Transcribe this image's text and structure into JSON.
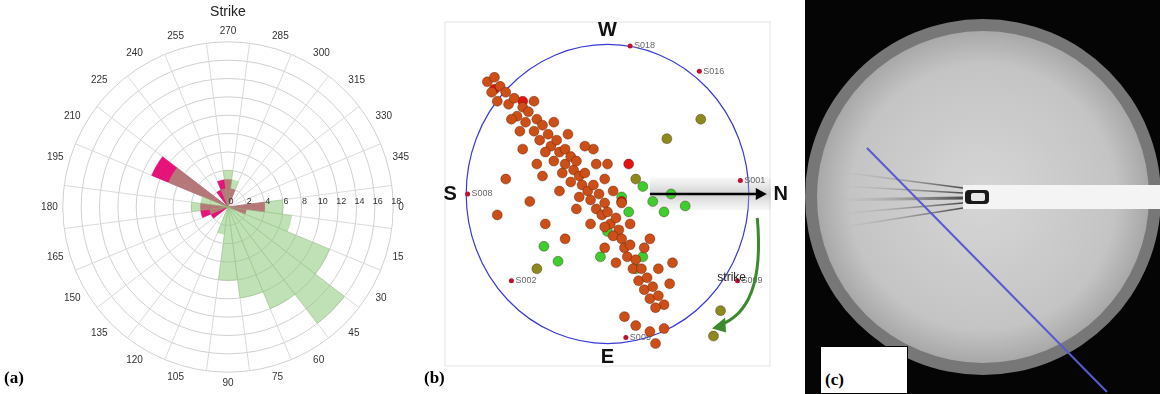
{
  "chart_data": [
    {
      "panel_label": "(a)",
      "type": "rose",
      "title": "Strike",
      "categories": [
        0,
        15,
        30,
        45,
        60,
        75,
        90,
        105,
        120,
        135,
        150,
        165,
        180,
        195,
        210,
        225,
        240,
        255,
        270,
        285,
        300,
        315,
        330,
        345
      ],
      "series": [
        {
          "color": "rgba(140,200,120,0.55)",
          "values": [
            6,
            7,
            12,
            16,
            12,
            10,
            8,
            3,
            0,
            0,
            0,
            2,
            4,
            3,
            7,
            0,
            0,
            2,
            4,
            3,
            0,
            0,
            0,
            0
          ]
        },
        {
          "color": "rgba(228,0,110,0.92)",
          "values": [
            4,
            2,
            0,
            0,
            0,
            0,
            0,
            0,
            0,
            0,
            2,
            3,
            3,
            0,
            9,
            0,
            2,
            3,
            3,
            2,
            0,
            0,
            0,
            0
          ]
        }
      ],
      "ylim": [
        0,
        18
      ],
      "yticks": [
        0,
        2,
        4,
        6,
        8,
        10,
        12,
        14,
        16,
        18
      ],
      "grid": true
    },
    {
      "panel_label": "(b)",
      "type": "scatter",
      "tick_labels": false,
      "xlim": [
        -1.15,
        1.15
      ],
      "ylim": [
        -1.15,
        1.15
      ],
      "series": [
        {
          "color": "#cc4f18",
          "values": [
            [
              -0.85,
              0.75
            ],
            [
              -0.8,
              0.78
            ],
            [
              -0.76,
              0.72
            ],
            [
              -0.82,
              0.68
            ],
            [
              -0.72,
              0.68
            ],
            [
              -0.78,
              0.62
            ],
            [
              -0.7,
              0.6
            ],
            [
              -0.66,
              0.64
            ],
            [
              -0.6,
              0.58
            ],
            [
              -0.64,
              0.52
            ],
            [
              -0.56,
              0.55
            ],
            [
              -0.58,
              0.48
            ],
            [
              -0.5,
              0.5
            ],
            [
              -0.52,
              0.42
            ],
            [
              -0.46,
              0.46
            ],
            [
              -0.48,
              0.36
            ],
            [
              -0.42,
              0.4
            ],
            [
              -0.4,
              0.32
            ],
            [
              -0.44,
              0.28
            ],
            [
              -0.36,
              0.36
            ],
            [
              -0.34,
              0.28
            ],
            [
              -0.38,
              0.22
            ],
            [
              -0.3,
              0.3
            ],
            [
              -0.3,
              0.2
            ],
            [
              -0.26,
              0.25
            ],
            [
              -0.32,
              0.14
            ],
            [
              -0.24,
              0.16
            ],
            [
              -0.22,
              0.22
            ],
            [
              -0.2,
              0.12
            ],
            [
              -0.26,
              0.08
            ],
            [
              -0.16,
              0.14
            ],
            [
              -0.18,
              0.06
            ],
            [
              -0.14,
              0.02
            ],
            [
              -0.2,
              -0.02
            ],
            [
              -0.1,
              0.06
            ],
            [
              -0.12,
              -0.04
            ],
            [
              -0.06,
              0.0
            ],
            [
              -0.08,
              -0.1
            ],
            [
              -0.02,
              -0.06
            ],
            [
              -0.04,
              -0.14
            ],
            [
              0.0,
              -0.12
            ],
            [
              0.02,
              -0.2
            ],
            [
              0.06,
              -0.16
            ],
            [
              -0.02,
              -0.22
            ],
            [
              0.08,
              -0.24
            ],
            [
              0.04,
              -0.28
            ],
            [
              0.1,
              -0.3
            ],
            [
              0.12,
              -0.36
            ],
            [
              0.16,
              -0.34
            ],
            [
              0.14,
              -0.42
            ],
            [
              0.2,
              -0.44
            ],
            [
              0.18,
              -0.5
            ],
            [
              0.24,
              -0.5
            ],
            [
              0.22,
              -0.58
            ],
            [
              0.28,
              -0.56
            ],
            [
              0.26,
              -0.64
            ],
            [
              0.32,
              -0.62
            ],
            [
              0.3,
              -0.7
            ],
            [
              0.36,
              -0.68
            ],
            [
              0.4,
              -0.74
            ],
            [
              0.34,
              -0.76
            ],
            [
              0.12,
              -0.82
            ],
            [
              0.2,
              -0.88
            ],
            [
              0.3,
              -0.92
            ],
            [
              0.34,
              -1.0
            ],
            [
              0.4,
              -0.9
            ],
            [
              -0.72,
              0.1
            ],
            [
              -0.78,
              -0.14
            ],
            [
              -0.55,
              -0.05
            ],
            [
              -0.5,
              0.2
            ],
            [
              -0.1,
              0.3
            ],
            [
              0.0,
              0.2
            ],
            [
              -0.44,
              -0.2
            ],
            [
              -0.3,
              -0.3
            ],
            [
              0.06,
              -0.46
            ],
            [
              0.3,
              -0.3
            ],
            [
              0.46,
              -0.46
            ],
            [
              -0.6,
              0.3
            ],
            [
              -0.52,
              0.62
            ],
            [
              -0.38,
              0.48
            ],
            [
              -0.28,
              0.4
            ],
            [
              -0.16,
              0.32
            ],
            [
              -0.08,
              0.2
            ],
            [
              -0.02,
              0.1
            ],
            [
              0.04,
              0.02
            ],
            [
              0.1,
              -0.06
            ],
            [
              0.16,
              -0.2
            ],
            [
              0.26,
              -0.36
            ],
            [
              0.36,
              -0.5
            ],
            [
              0.44,
              -0.6
            ],
            [
              -0.02,
              -0.36
            ],
            [
              -0.12,
              -0.2
            ],
            [
              -0.22,
              -0.1
            ],
            [
              -0.34,
              0.02
            ],
            [
              -0.46,
              0.12
            ],
            [
              -0.62,
              0.42
            ],
            [
              -0.68,
              0.5
            ]
          ]
        },
        {
          "color": "#e41212",
          "values": [
            [
              -0.8,
              0.7
            ],
            [
              0.15,
              0.2
            ],
            [
              0.1,
              -0.05
            ],
            [
              -0.6,
              0.62
            ]
          ]
        },
        {
          "color": "#8c8a1e",
          "values": [
            [
              0.42,
              0.37
            ],
            [
              0.66,
              0.5
            ],
            [
              0.2,
              0.1
            ],
            [
              -0.5,
              -0.5
            ],
            [
              0.75,
              -0.95
            ],
            [
              0.8,
              -0.78
            ]
          ]
        },
        {
          "color": "#3fcc30",
          "values": [
            [
              0.25,
              0.05
            ],
            [
              0.32,
              -0.05
            ],
            [
              0.45,
              0.0
            ],
            [
              0.4,
              -0.12
            ],
            [
              0.15,
              -0.12
            ],
            [
              0.0,
              -0.25
            ],
            [
              -0.05,
              -0.42
            ],
            [
              0.25,
              -0.42
            ],
            [
              0.2,
              -0.5
            ],
            [
              -0.45,
              -0.35
            ],
            [
              -0.35,
              -0.45
            ],
            [
              0.55,
              -0.08
            ],
            [
              0.1,
              -0.02
            ]
          ]
        }
      ],
      "sensors": [
        {
          "label": "S018",
          "x": 0.16,
          "y": 0.99
        },
        {
          "label": "S016",
          "x": 0.65,
          "y": 0.82
        },
        {
          "label": "S001",
          "x": 0.94,
          "y": 0.09
        },
        {
          "label": "S008",
          "x": -0.99,
          "y": 0.0
        },
        {
          "label": "S002",
          "x": -0.68,
          "y": -0.58
        },
        {
          "label": "S009",
          "x": 0.92,
          "y": -0.58
        },
        {
          "label": "S005",
          "x": 0.13,
          "y": -0.96
        }
      ],
      "compass": {
        "top": "W",
        "left": "S",
        "right": "N",
        "bottom": "E"
      },
      "annotation": "strike"
    }
  ],
  "image": {
    "panel_label": "(c)"
  }
}
